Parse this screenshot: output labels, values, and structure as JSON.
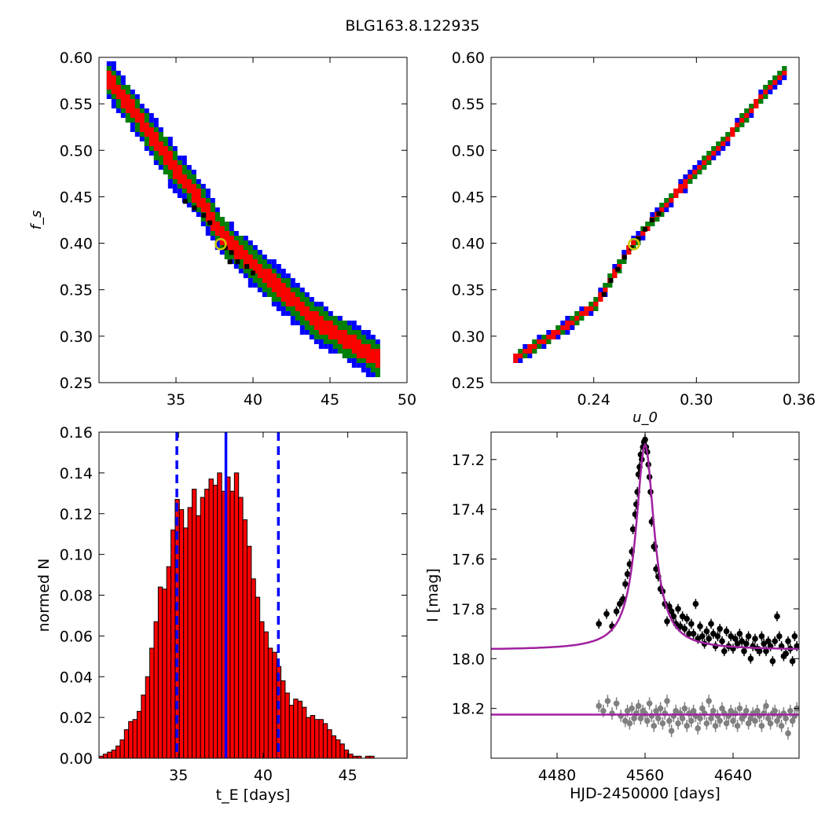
{
  "figure_title": "BLG163.8.122935",
  "chart_data": [
    {
      "type": "heatmap",
      "id": "fs_vs_tE",
      "xlabel": "",
      "ylabel": "f_s",
      "xlim": [
        30,
        50
      ],
      "ylim": [
        0.25,
        0.6
      ],
      "xticks": [
        "35",
        "40",
        "45",
        "50"
      ],
      "yticks": [
        "0.25",
        "0.30",
        "0.35",
        "0.40",
        "0.45",
        "0.50",
        "0.55",
        "0.60"
      ],
      "grid": false,
      "band": {
        "center_line": [
          [
            30.5,
            0.575
          ],
          [
            32,
            0.545
          ],
          [
            33.5,
            0.51
          ],
          [
            35,
            0.475
          ],
          [
            36.5,
            0.445
          ],
          [
            38,
            0.405
          ],
          [
            40,
            0.375
          ],
          [
            42,
            0.345
          ],
          [
            44,
            0.315
          ],
          [
            46,
            0.295
          ],
          [
            48,
            0.275
          ]
        ],
        "levels": [
          {
            "name": "3-sigma",
            "color": "#0000ff",
            "half_width": 0.023
          },
          {
            "name": "2-sigma",
            "color": "#008000",
            "half_width": 0.017
          },
          {
            "name": "1-sigma",
            "color": "#ff0000",
            "half_width": 0.009
          }
        ],
        "core_color": "#000000",
        "core_points": [
          [
            35.6,
            0.445
          ],
          [
            36.2,
            0.438
          ],
          [
            36.8,
            0.43
          ],
          [
            37.2,
            0.422
          ],
          [
            38.2,
            0.395
          ],
          [
            38.6,
            0.39
          ],
          [
            39,
            0.38
          ],
          [
            39.6,
            0.375
          ],
          [
            40,
            0.368
          ],
          [
            38.5,
            0.38
          ]
        ]
      },
      "best_fit": {
        "x": 37.9,
        "y": 0.399,
        "color": "#c8c800"
      }
    },
    {
      "type": "heatmap",
      "id": "fs_vs_u0",
      "xlabel": "u_0",
      "ylabel": "",
      "xlim": [
        0.18,
        0.36
      ],
      "ylim": [
        0.25,
        0.6
      ],
      "xticks": [
        "0.24",
        "0.30",
        "0.36"
      ],
      "yticks": [
        "0.25",
        "0.30",
        "0.35",
        "0.40",
        "0.45",
        "0.50",
        "0.55",
        "0.60"
      ],
      "grid": false,
      "band": {
        "center_line": [
          [
            0.193,
            0.277
          ],
          [
            0.22,
            0.307
          ],
          [
            0.24,
            0.335
          ],
          [
            0.26,
            0.395
          ],
          [
            0.28,
            0.44
          ],
          [
            0.3,
            0.48
          ],
          [
            0.32,
            0.52
          ],
          [
            0.34,
            0.565
          ],
          [
            0.35,
            0.585
          ]
        ],
        "levels": [
          {
            "name": "3-sigma",
            "color": "#0000ff",
            "half_width": 0.0075
          },
          {
            "name": "2-sigma",
            "color": "#008000",
            "half_width": 0.0055
          },
          {
            "name": "1-sigma",
            "color": "#ff0000",
            "half_width": 0.003
          }
        ],
        "core_color": "#000000",
        "core_points": [
          [
            0.246,
            0.345
          ],
          [
            0.25,
            0.36
          ],
          [
            0.254,
            0.372
          ],
          [
            0.258,
            0.385
          ],
          [
            0.262,
            0.395
          ],
          [
            0.266,
            0.405
          ],
          [
            0.27,
            0.415
          ],
          [
            0.274,
            0.425
          ],
          [
            0.278,
            0.432
          ]
        ]
      },
      "best_fit": {
        "x": 0.2635,
        "y": 0.399,
        "color": "#c8c800"
      }
    },
    {
      "type": "bar",
      "id": "tE_histogram",
      "xlabel": "t_E [days]",
      "ylabel": "normed N",
      "xlim": [
        30.3,
        48.5
      ],
      "ylim": [
        0,
        0.16
      ],
      "xticks": [
        "35",
        "40",
        "45"
      ],
      "yticks": [
        "0.00",
        "0.02",
        "0.04",
        "0.06",
        "0.08",
        "0.10",
        "0.12",
        "0.14",
        "0.16"
      ],
      "bar_color": "#ff0000",
      "bin_start": 30.3,
      "bin_width": 0.25,
      "values": [
        0.001,
        0.002,
        0.003,
        0.004,
        0.006,
        0.009,
        0.014,
        0.018,
        0.019,
        0.023,
        0.031,
        0.04,
        0.054,
        0.067,
        0.084,
        0.083,
        0.094,
        0.112,
        0.127,
        0.122,
        0.113,
        0.123,
        0.132,
        0.119,
        0.128,
        0.132,
        0.137,
        0.134,
        0.14,
        0.131,
        0.138,
        0.131,
        0.14,
        0.128,
        0.117,
        0.104,
        0.088,
        0.079,
        0.067,
        0.062,
        0.054,
        0.052,
        0.045,
        0.038,
        0.032,
        0.026,
        0.029,
        0.028,
        0.025,
        0.02,
        0.021,
        0.019,
        0.019,
        0.017,
        0.014,
        0.011,
        0.009,
        0.007,
        0.004,
        0.002,
        0.001,
        0.001,
        0.0,
        0.001,
        0.001
      ],
      "vlines": [
        {
          "x": 37.8,
          "style": "solid",
          "color": "#0000ff"
        },
        {
          "x": 34.9,
          "style": "dashed",
          "color": "#0000ff"
        },
        {
          "x": 40.9,
          "style": "dashed",
          "color": "#0000ff"
        }
      ]
    },
    {
      "type": "scatter",
      "id": "light_curve",
      "xlabel": "HJD-2450000 [days]",
      "ylabel": "I [mag]",
      "xlim": [
        4420,
        4700
      ],
      "ylim": [
        18.4,
        17.09
      ],
      "xticks": [
        "4480",
        "4560",
        "4640"
      ],
      "yticks": [
        "17.2",
        "17.4",
        "17.6",
        "17.8",
        "18.0",
        "18.2"
      ],
      "model": {
        "color": "#a020a0",
        "t0": 4560,
        "baseline": 17.965,
        "peak": 17.14,
        "width": 10
      },
      "second_model": {
        "color": "#a020a0",
        "level": 18.225
      },
      "series": [
        {
          "name": "",
          "color": "#000000",
          "x": [
            4518,
            4525,
            4530,
            4534,
            4537,
            4540,
            4542,
            4544,
            4546,
            4548,
            4549,
            4551,
            4552,
            4553,
            4554,
            4555,
            4556,
            4557,
            4558,
            4559,
            4560,
            4561,
            4562,
            4563,
            4564,
            4565,
            4566,
            4568,
            4569,
            4570,
            4572,
            4574,
            4576,
            4578,
            4580,
            4582,
            4584,
            4586,
            4588,
            4590,
            4592,
            4594,
            4596,
            4598,
            4600,
            4602,
            4604,
            4606,
            4608,
            4610,
            4612,
            4614,
            4616,
            4618,
            4620,
            4622,
            4624,
            4626,
            4628,
            4630,
            4632,
            4634,
            4636,
            4638,
            4640,
            4642,
            4644,
            4646,
            4648,
            4650,
            4652,
            4654,
            4656,
            4658,
            4660,
            4662,
            4664,
            4666,
            4668,
            4670,
            4672,
            4674,
            4676,
            4678,
            4680,
            4682,
            4684,
            4686,
            4688,
            4690,
            4692,
            4694,
            4696,
            4698
          ],
          "y": [
            17.86,
            17.82,
            17.87,
            17.81,
            17.78,
            17.76,
            17.7,
            17.66,
            17.62,
            17.57,
            17.48,
            17.42,
            17.38,
            17.33,
            17.26,
            17.23,
            17.18,
            17.2,
            17.15,
            17.13,
            17.12,
            17.15,
            17.17,
            17.22,
            17.27,
            17.33,
            17.45,
            17.55,
            17.55,
            17.64,
            17.67,
            17.72,
            17.73,
            17.78,
            17.85,
            17.79,
            17.81,
            17.83,
            17.86,
            17.8,
            17.87,
            17.83,
            17.88,
            17.84,
            17.9,
            17.86,
            17.9,
            17.78,
            17.92,
            17.87,
            17.91,
            17.94,
            17.89,
            17.92,
            17.86,
            17.9,
            17.95,
            17.91,
            17.88,
            17.93,
            17.97,
            17.89,
            17.95,
            17.91,
            17.96,
            17.92,
            17.94,
            17.9,
            17.93,
            17.97,
            17.94,
            17.91,
            18.0,
            17.95,
            17.92,
            17.96,
            17.97,
            17.91,
            17.94,
            17.97,
            17.93,
            17.95,
            18.01,
            17.93,
            17.83,
            17.91,
            17.95,
            17.99,
            17.98,
            17.93,
            17.96,
            18.01,
            17.91,
            17.95
          ],
          "err": 0.02
        },
        {
          "name": "",
          "color": "#808080",
          "x": [
            4518,
            4522,
            4526,
            4530,
            4534,
            4538,
            4542,
            4544,
            4546,
            4548,
            4550,
            4552,
            4554,
            4556,
            4558,
            4560,
            4562,
            4564,
            4566,
            4568,
            4570,
            4572,
            4574,
            4576,
            4578,
            4580,
            4582,
            4584,
            4586,
            4588,
            4590,
            4592,
            4594,
            4596,
            4598,
            4600,
            4602,
            4604,
            4606,
            4608,
            4610,
            4612,
            4614,
            4616,
            4618,
            4620,
            4622,
            4624,
            4626,
            4628,
            4630,
            4632,
            4634,
            4636,
            4638,
            4640,
            4642,
            4644,
            4646,
            4648,
            4650,
            4652,
            4654,
            4656,
            4658,
            4660,
            4662,
            4664,
            4666,
            4668,
            4670,
            4672,
            4674,
            4676,
            4678,
            4680,
            4682,
            4684,
            4686,
            4688,
            4690,
            4692,
            4694,
            4696,
            4698
          ],
          "y": [
            18.19,
            18.21,
            18.17,
            18.22,
            18.18,
            18.23,
            18.25,
            18.21,
            18.26,
            18.2,
            18.24,
            18.22,
            18.19,
            18.24,
            18.21,
            18.22,
            18.25,
            18.18,
            18.23,
            18.27,
            18.21,
            18.24,
            18.2,
            18.26,
            18.22,
            18.17,
            18.25,
            18.29,
            18.23,
            18.21,
            18.26,
            18.22,
            18.24,
            18.2,
            18.27,
            18.22,
            18.25,
            18.21,
            18.23,
            18.28,
            18.24,
            18.2,
            18.22,
            18.26,
            18.17,
            18.24,
            18.21,
            18.27,
            18.23,
            18.25,
            18.2,
            18.22,
            18.26,
            18.23,
            18.21,
            18.25,
            18.22,
            18.27,
            18.2,
            18.24,
            18.23,
            18.21,
            18.26,
            18.24,
            18.22,
            18.25,
            18.21,
            18.23,
            18.27,
            18.22,
            18.19,
            18.24,
            18.26,
            18.22,
            18.21,
            18.25,
            18.23,
            18.27,
            18.22,
            18.24,
            18.3,
            18.21,
            18.25,
            18.23,
            18.2
          ],
          "err": 0.025
        }
      ]
    }
  ]
}
